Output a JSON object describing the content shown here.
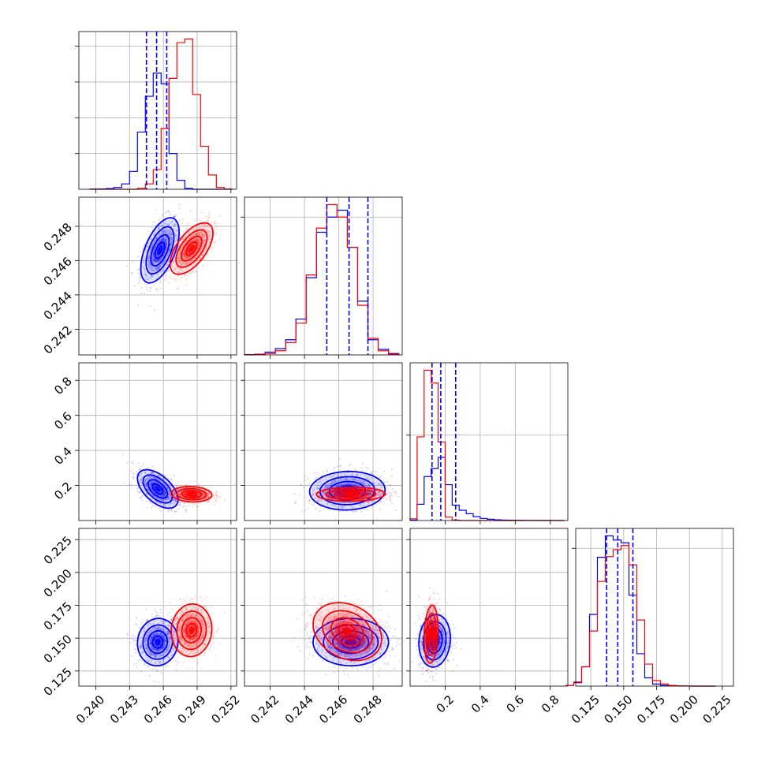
{
  "chart_data": {
    "type": "corner",
    "colors": {
      "series_a": "#0000ff",
      "series_b": "#ff0000",
      "grid": "#b0b0b0",
      "axes": "#000000"
    },
    "grid": true,
    "parameters": [
      {
        "range": [
          0.2385,
          0.2525
        ],
        "ticks": [
          "0.240",
          "0.243",
          "0.246",
          "0.249",
          "0.252"
        ],
        "tick_values": [
          0.24,
          0.243,
          0.246,
          0.249,
          0.252
        ]
      },
      {
        "range": [
          0.2405,
          0.2497
        ],
        "ticks": [
          "0.242",
          "0.244",
          "0.246",
          "0.248"
        ],
        "tick_values": [
          0.242,
          0.244,
          0.246,
          0.248
        ]
      },
      {
        "range": [
          0.0,
          0.9
        ],
        "ticks": [
          "0.2",
          "0.4",
          "0.6",
          "0.8"
        ],
        "tick_values": [
          0.2,
          0.4,
          0.6,
          0.8
        ]
      },
      {
        "range": [
          0.1135,
          0.2335
        ],
        "ticks": [
          "0.125",
          "0.150",
          "0.175",
          "0.200",
          "0.225"
        ],
        "tick_values": [
          0.125,
          0.15,
          0.175,
          0.2,
          0.225
        ]
      }
    ],
    "histograms": [
      {
        "edges": [
          0.2395,
          0.2402,
          0.2409,
          0.2416,
          0.2423,
          0.243,
          0.2437,
          0.2444,
          0.2451,
          0.2458,
          0.2465,
          0.2472,
          0.2479,
          0.2486,
          0.2493,
          0.25,
          0.2507,
          0.2514,
          0.2521
        ],
        "series": [
          {
            "name": "blue",
            "values": [
              1,
              2,
              4,
              10,
              30,
              100,
              320,
              520,
              650,
              590,
              200,
              50,
              5,
              0,
              0,
              0,
              0,
              0
            ]
          },
          {
            "name": "red",
            "values": [
              0,
              0,
              0,
              0,
              0,
              0,
              5,
              30,
              110,
              340,
              620,
              820,
              840,
              530,
              240,
              80,
              10,
              1
            ]
          }
        ],
        "quantiles_blue": [
          0.2445,
          0.2454,
          0.2463
        ]
      },
      {
        "edges": [
          0.2405,
          0.2411,
          0.2417,
          0.2423,
          0.2429,
          0.2435,
          0.2441,
          0.2447,
          0.2453,
          0.2459,
          0.2465,
          0.2471,
          0.2477,
          0.2483,
          0.2489,
          0.2495
        ],
        "series": [
          {
            "name": "blue",
            "values": [
              1,
              5,
              20,
              45,
              110,
              260,
              560,
              890,
              1000,
              1050,
              780,
              390,
              110,
              40,
              10
            ]
          },
          {
            "name": "red",
            "values": [
              2,
              4,
              10,
              30,
              90,
              230,
              580,
              920,
              1090,
              1000,
              780,
              360,
              120,
              30,
              5
            ]
          }
        ],
        "quantiles_blue": [
          0.2453,
          0.2466,
          0.2477
        ]
      },
      {
        "edges": [
          0.0,
          0.04,
          0.08,
          0.12,
          0.16,
          0.2,
          0.24,
          0.28,
          0.32,
          0.36,
          0.4,
          0.44,
          0.48,
          0.52,
          0.56,
          0.6,
          0.64,
          0.68,
          0.72,
          0.76,
          0.8,
          0.84,
          0.88
        ],
        "series": [
          {
            "name": "blue",
            "values": [
              5,
              190,
              515,
              610,
              740,
              420,
              180,
              120,
              80,
              45,
              25,
              15,
              8,
              5,
              4,
              2,
              1,
              1,
              1,
              0,
              0,
              0
            ]
          },
          {
            "name": "red",
            "values": [
              20,
              980,
              1760,
              1610,
              920,
              40,
              5,
              0,
              0,
              0,
              0,
              0,
              0,
              0,
              0,
              0,
              0,
              0,
              0,
              0,
              0,
              0
            ]
          }
        ],
        "quantiles_blue": [
          0.125,
          0.175,
          0.26
        ]
      },
      {
        "edges": [
          0.106,
          0.112,
          0.118,
          0.124,
          0.13,
          0.136,
          0.142,
          0.148,
          0.154,
          0.16,
          0.166,
          0.172,
          0.178,
          0.184,
          0.19,
          0.196,
          0.202,
          0.208,
          0.214,
          0.22
        ],
        "series": [
          {
            "name": "blue",
            "values": [
              5,
              25,
              140,
              520,
              935,
              1090,
              1060,
              1040,
              660,
              235,
              60,
              15,
              5,
              2,
              1,
              1,
              0,
              0,
              0
            ]
          },
          {
            "name": "red",
            "values": [
              5,
              30,
              140,
              400,
              760,
              940,
              990,
              1020,
              880,
              480,
              160,
              40,
              15,
              5,
              2,
              1,
              0,
              0,
              0
            ]
          }
        ],
        "quantiles_blue": [
          0.137,
          0.1455,
          0.157
        ]
      }
    ],
    "pairs": [
      {
        "row": 1,
        "col": 0,
        "blue": {
          "mean": [
            0.2457,
            0.2466
          ],
          "sd": [
            0.00085,
            0.00095
          ],
          "rho": 0.55
        },
        "red": {
          "mean": [
            0.2485,
            0.2467
          ],
          "sd": [
            0.00095,
            0.00075
          ],
          "rho": 0.6
        }
      },
      {
        "row": 2,
        "col": 0,
        "blue": {
          "mean": [
            0.2455,
            0.18
          ],
          "sd": [
            0.0009,
            0.055
          ],
          "rho": -0.55
        },
        "red": {
          "mean": [
            0.2485,
            0.15
          ],
          "sd": [
            0.0009,
            0.022
          ],
          "rho": -0.1
        }
      },
      {
        "row": 2,
        "col": 1,
        "blue": {
          "mean": [
            0.2465,
            0.17
          ],
          "sd": [
            0.0011,
            0.055
          ],
          "rho": 0.05
        },
        "red": {
          "mean": [
            0.2467,
            0.15
          ],
          "sd": [
            0.001,
            0.02
          ],
          "rho": 0.05
        }
      },
      {
        "row": 3,
        "col": 0,
        "blue": {
          "mean": [
            0.2455,
            0.147
          ],
          "sd": [
            0.0009,
            0.009
          ],
          "rho": 0.05
        },
        "red": {
          "mean": [
            0.2485,
            0.156
          ],
          "sd": [
            0.0009,
            0.01
          ],
          "rho": 0.05
        }
      },
      {
        "row": 3,
        "col": 1,
        "blue": {
          "mean": [
            0.2467,
            0.147
          ],
          "sd": [
            0.0011,
            0.009
          ],
          "rho": 0.0
        },
        "red": {
          "mean": [
            0.2465,
            0.155
          ],
          "sd": [
            0.001,
            0.011
          ],
          "rho": -0.25
        }
      },
      {
        "row": 3,
        "col": 2,
        "blue": {
          "mean": [
            0.14,
            0.148
          ],
          "sd": [
            0.045,
            0.01
          ],
          "rho": 0.1
        },
        "red": {
          "mean": [
            0.12,
            0.153
          ],
          "sd": [
            0.02,
            0.011
          ],
          "rho": 0.15
        }
      }
    ]
  }
}
